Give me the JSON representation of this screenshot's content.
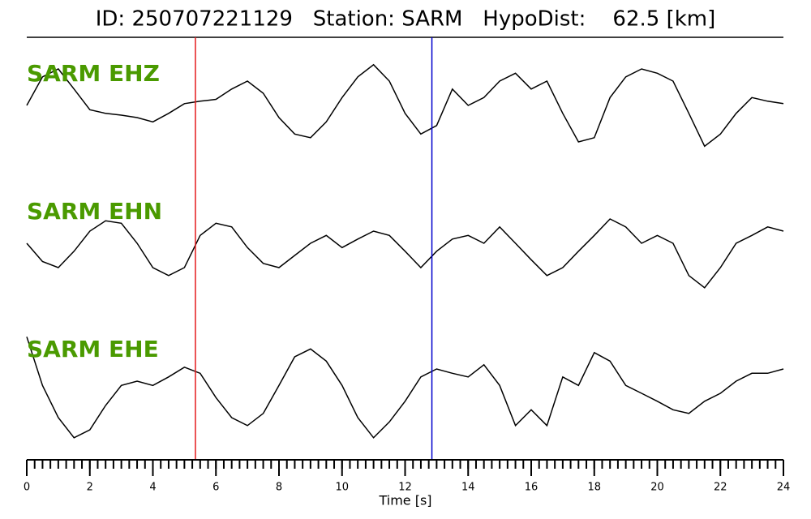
{
  "chart_data": {
    "type": "seismogram",
    "title": "ID: 250707221129   Station: SARM   HypoDist:    62.5 [km]",
    "xlabel": "Time [s]",
    "xlim": [
      0,
      24
    ],
    "xticks": [
      0,
      2,
      4,
      6,
      8,
      10,
      12,
      14,
      16,
      18,
      20,
      22,
      24
    ],
    "xminorticks": [
      0,
      0.25,
      0.5,
      0.75,
      1,
      1.25,
      1.5,
      1.75,
      2,
      2.25,
      2.5,
      2.75,
      3,
      3.25,
      3.5,
      3.75,
      4,
      4.25,
      4.5,
      4.75,
      5,
      5.25,
      5.5,
      5.75,
      6,
      6.25,
      6.5,
      6.75,
      7,
      7.25,
      7.5,
      7.75,
      8,
      8.25,
      8.5,
      8.75,
      9,
      9.25,
      9.5,
      9.75,
      10,
      10.25,
      10.5,
      10.75,
      11,
      11.25,
      11.5,
      11.75,
      12,
      12.25,
      12.5,
      12.75,
      13,
      13.25,
      13.5,
      13.75,
      14,
      14.25,
      14.5,
      14.75,
      15,
      15.25,
      15.5,
      15.75,
      16,
      16.25,
      16.5,
      16.75,
      17,
      17.25,
      17.5,
      17.75,
      18,
      18.25,
      18.5,
      18.75,
      19,
      19.25,
      19.5,
      19.75,
      20,
      20.25,
      20.5,
      20.75,
      21,
      21.25,
      21.5,
      21.75,
      22,
      22.25,
      22.5,
      22.75,
      23,
      23.25,
      23.5,
      23.75,
      24
    ],
    "ylim": [
      -1,
      1
    ],
    "label_color": "#4a9a00",
    "x": [
      0,
      0.5,
      1,
      1.5,
      2,
      2.5,
      3,
      3.5,
      4,
      4.5,
      5,
      5.5,
      6,
      6.5,
      7,
      7.5,
      8,
      8.5,
      9,
      9.5,
      10,
      10.5,
      11,
      11.5,
      12,
      12.5,
      13,
      13.5,
      14,
      14.5,
      15,
      15.5,
      16,
      16.5,
      17,
      17.5,
      18,
      18.5,
      19,
      19.5,
      20,
      20.5,
      21,
      21.5,
      22,
      22.5,
      23,
      23.5,
      24
    ],
    "series": [
      {
        "name": "SARM EHZ",
        "color": "#000000",
        "values": [
          0,
          0.47,
          0.6,
          0.27,
          -0.07,
          -0.13,
          -0.16,
          -0.2,
          -0.27,
          -0.13,
          0.03,
          0.07,
          0.1,
          0.27,
          0.4,
          0.2,
          -0.2,
          -0.47,
          -0.53,
          -0.27,
          0.13,
          0.47,
          0.67,
          0.4,
          -0.13,
          -0.47,
          -0.33,
          0.27,
          0,
          0.13,
          0.4,
          0.53,
          0.27,
          0.4,
          -0.13,
          -0.6,
          -0.53,
          0.13,
          0.47,
          0.6,
          0.53,
          0.4,
          -0.13,
          -0.67,
          -0.47,
          -0.13,
          0.13,
          0.07,
          0.03
        ]
      },
      {
        "name": "SARM EHN",
        "color": "#000000",
        "values": [
          0,
          -0.3,
          -0.4,
          -0.13,
          0.2,
          0.37,
          0.33,
          0,
          -0.4,
          -0.53,
          -0.4,
          0.13,
          0.33,
          0.27,
          -0.07,
          -0.33,
          -0.4,
          -0.2,
          0,
          0.13,
          -0.07,
          0.07,
          0.2,
          0.13,
          -0.13,
          -0.4,
          -0.13,
          0.07,
          0.13,
          0,
          0.27,
          0,
          -0.27,
          -0.53,
          -0.4,
          -0.13,
          0.13,
          0.4,
          0.27,
          0,
          0.13,
          0,
          -0.53,
          -0.73,
          -0.4,
          0,
          0.13,
          0.27,
          0.2
        ]
      },
      {
        "name": "SARM EHE",
        "color": "#000000",
        "values": [
          0.73,
          -0.07,
          -0.6,
          -0.93,
          -0.8,
          -0.4,
          -0.07,
          0,
          -0.07,
          0.07,
          0.23,
          0.13,
          -0.27,
          -0.6,
          -0.73,
          -0.53,
          -0.07,
          0.4,
          0.53,
          0.33,
          -0.07,
          -0.6,
          -0.93,
          -0.67,
          -0.33,
          0.07,
          0.2,
          0.13,
          0.07,
          0.27,
          -0.07,
          -0.73,
          -0.47,
          -0.73,
          0.07,
          -0.07,
          0.47,
          0.33,
          -0.07,
          -0.2,
          -0.33,
          -0.47,
          -0.53,
          -0.33,
          -0.2,
          0,
          0.13,
          0.13,
          0.2
        ]
      }
    ],
    "picks": [
      {
        "time": 5.35,
        "color": "#e41a1c"
      },
      {
        "time": 12.85,
        "color": "#0000cc"
      }
    ]
  }
}
